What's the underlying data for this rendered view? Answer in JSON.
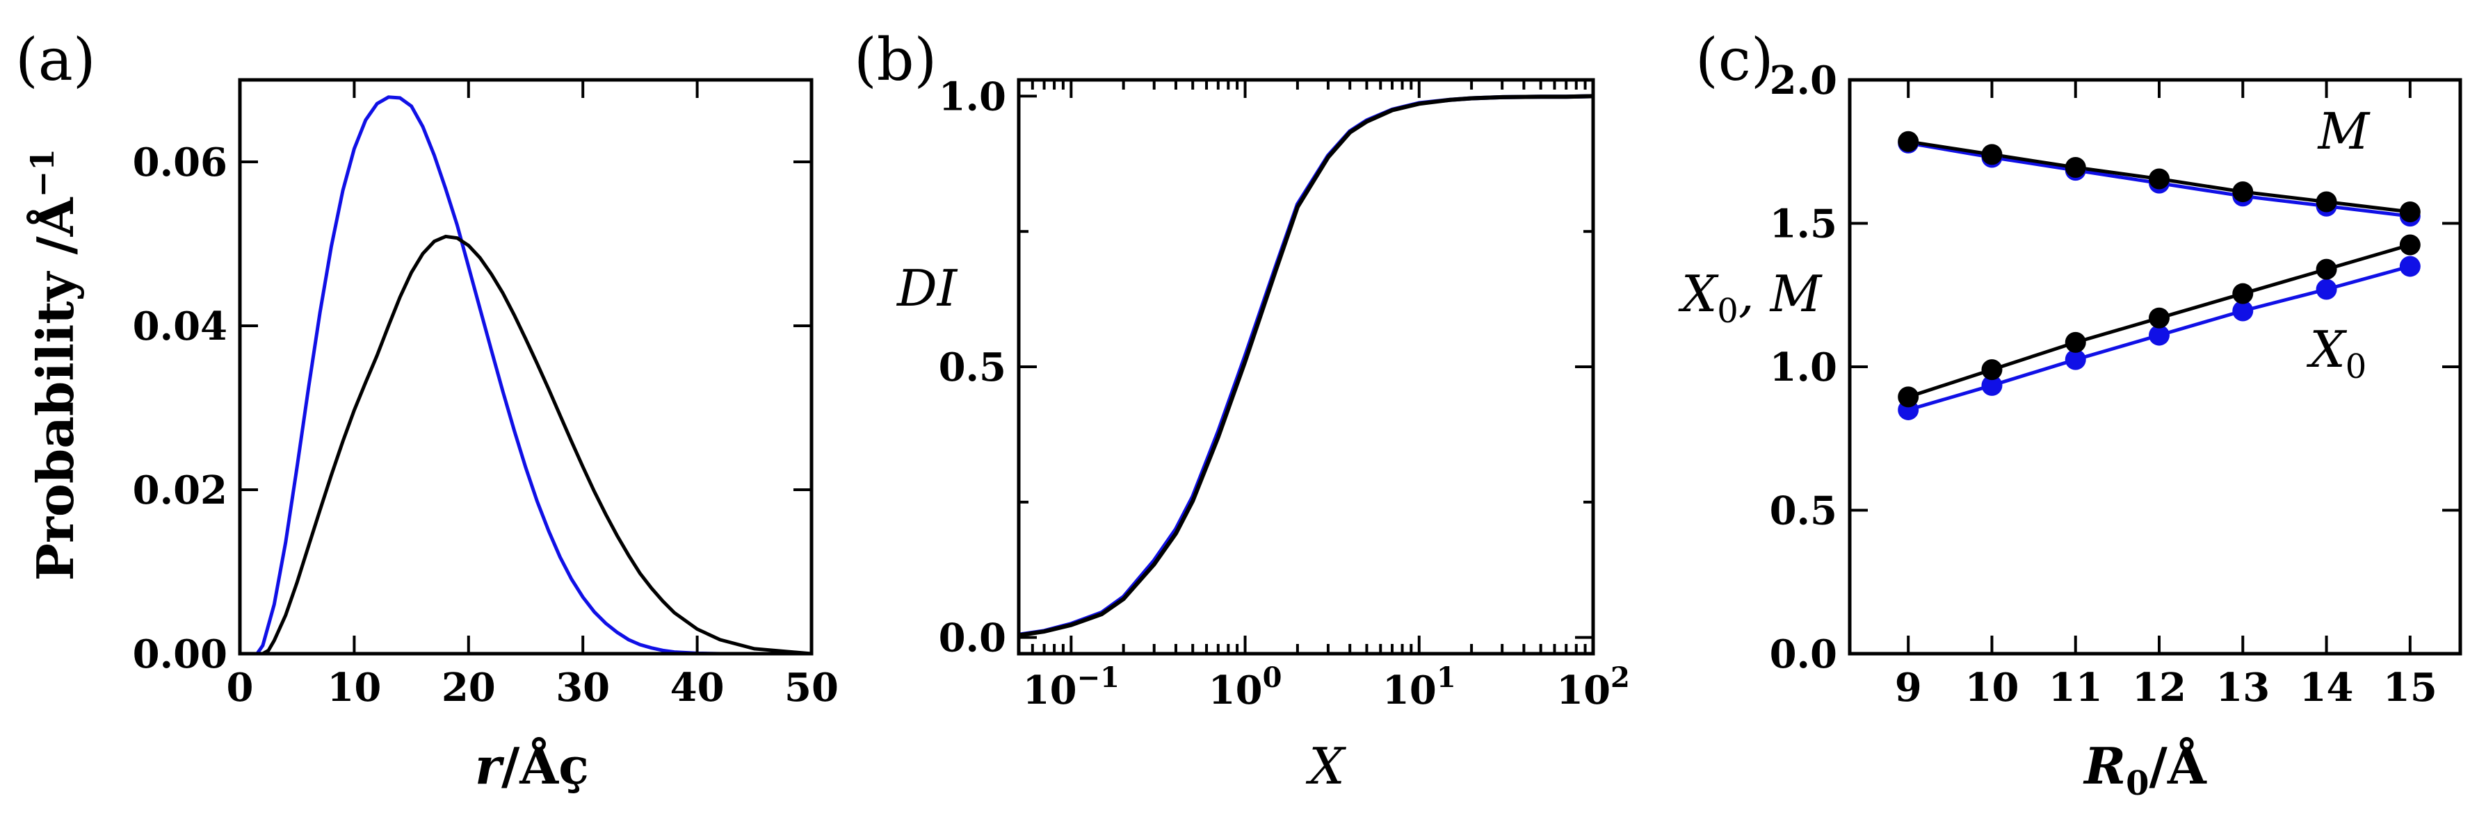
{
  "colors": {
    "black": "#000000",
    "blue": "#1010e6"
  },
  "chart_data": [
    {
      "type": "line",
      "panel_label": "(a)",
      "xlabel_prefix": "r",
      "xlabel_sep": "/",
      "xlabel_unit": "Åç",
      "ylabel": "Probability /Å",
      "ylabel_sup": "−1",
      "xlim": [
        0,
        50
      ],
      "ylim": [
        0,
        0.07
      ],
      "xticks": [
        0,
        10,
        20,
        30,
        40,
        50
      ],
      "xtick_labels": [
        "0",
        "10",
        "20",
        "30",
        "40",
        "50"
      ],
      "yticks": [
        0,
        0.02,
        0.04,
        0.06
      ],
      "ytick_labels": [
        "0.00",
        "0.02",
        "0.04",
        "0.06"
      ],
      "grid": false,
      "series": [
        {
          "color": "blue",
          "x": [
            0,
            1.5,
            2,
            3,
            4,
            5,
            6,
            7,
            8,
            9,
            10,
            11,
            12,
            13,
            14,
            15,
            16,
            17,
            18,
            19,
            20,
            21,
            22,
            23,
            24,
            25,
            26,
            27,
            28,
            29,
            30,
            31,
            32,
            33,
            34,
            35,
            36,
            37,
            38,
            40,
            42,
            45,
            50
          ],
          "y": [
            0,
            0,
            0.001,
            0.006,
            0.0136,
            0.0228,
            0.0324,
            0.0416,
            0.0497,
            0.0565,
            0.0616,
            0.0651,
            0.0671,
            0.0679,
            0.0678,
            0.0668,
            0.0643,
            0.0608,
            0.0567,
            0.0523,
            0.0472,
            0.0421,
            0.037,
            0.032,
            0.0272,
            0.0227,
            0.0186,
            0.015,
            0.0118,
            0.0091,
            0.0069,
            0.0051,
            0.0037,
            0.0026,
            0.0017,
            0.0011,
            0.0007,
            0.0004,
            0.0002,
            5e-05,
            0,
            0,
            0
          ]
        },
        {
          "color": "black",
          "x": [
            0,
            2,
            2.5,
            3,
            4,
            5,
            6,
            7,
            8,
            9,
            10,
            11,
            12,
            13,
            14,
            15,
            16,
            17,
            18,
            19,
            20,
            21,
            22,
            23,
            24,
            25,
            26,
            27,
            28,
            29,
            30,
            31,
            32,
            33,
            34,
            35,
            36,
            37,
            38,
            40,
            42,
            45,
            50
          ],
          "y": [
            0,
            0,
            0.0004,
            0.0016,
            0.0047,
            0.0087,
            0.0131,
            0.0175,
            0.0218,
            0.0259,
            0.0297,
            0.0331,
            0.0364,
            0.04,
            0.0435,
            0.0465,
            0.0488,
            0.0503,
            0.0509,
            0.0507,
            0.0498,
            0.0483,
            0.0463,
            0.044,
            0.0413,
            0.0384,
            0.0354,
            0.0323,
            0.0291,
            0.0259,
            0.0228,
            0.0198,
            0.017,
            0.0144,
            0.012,
            0.0098,
            0.008,
            0.0064,
            0.005,
            0.003,
            0.0017,
            0.0006,
            0
          ]
        }
      ]
    },
    {
      "type": "line",
      "panel_label": "(b)",
      "xlabel": "X",
      "ylabel": "DI",
      "xscale": "log",
      "xlim": [
        0.05,
        100
      ],
      "ylim": [
        -0.03,
        1.03
      ],
      "xticks": [
        0.1,
        1,
        10,
        100
      ],
      "xtick_base": "10",
      "xtick_exps": [
        "−1",
        "0",
        "1",
        "2"
      ],
      "yticks": [
        0,
        0.5,
        1
      ],
      "ytick_labels": [
        "0.0",
        "0.5",
        "1.0"
      ],
      "grid": false,
      "series": [
        {
          "color": "blue",
          "x": [
            0.05,
            0.07,
            0.1,
            0.15,
            0.2,
            0.3,
            0.4,
            0.5,
            0.7,
            1,
            1.5,
            2,
            3,
            4,
            5,
            7,
            10,
            15,
            20,
            30,
            50,
            70,
            100
          ],
          "y": [
            0.005,
            0.012,
            0.025,
            0.046,
            0.075,
            0.142,
            0.2,
            0.26,
            0.38,
            0.52,
            0.685,
            0.8,
            0.89,
            0.935,
            0.955,
            0.975,
            0.987,
            0.993,
            0.996,
            0.998,
            0.999,
            0.999,
            1.0
          ]
        },
        {
          "color": "black",
          "x": [
            0.05,
            0.07,
            0.1,
            0.15,
            0.2,
            0.3,
            0.4,
            0.5,
            0.7,
            1,
            1.5,
            2,
            3,
            4,
            5,
            7,
            10,
            15,
            20,
            30,
            50,
            70,
            100
          ],
          "y": [
            0.004,
            0.011,
            0.023,
            0.043,
            0.071,
            0.135,
            0.192,
            0.252,
            0.37,
            0.51,
            0.678,
            0.795,
            0.887,
            0.933,
            0.953,
            0.974,
            0.986,
            0.993,
            0.996,
            0.998,
            0.999,
            0.999,
            1.0
          ]
        }
      ]
    },
    {
      "type": "scatter",
      "panel_label": "(c)",
      "xlabel": "R",
      "xlabel_sub": "0",
      "xlabel_unit": "/Å",
      "ylabel": "X",
      "ylabel_sub": "0",
      "ylabel_rest": ", M",
      "xlim": [
        8.3,
        15.6
      ],
      "ylim": [
        0,
        2.0
      ],
      "xticks": [
        9,
        10,
        11,
        12,
        13,
        14,
        15
      ],
      "xtick_labels": [
        "9",
        "10",
        "11",
        "12",
        "13",
        "14",
        "15"
      ],
      "yticks": [
        0,
        0.5,
        1.0,
        1.5,
        2.0
      ],
      "ytick_labels": [
        "0.0",
        "0.5",
        "1.0",
        "1.5",
        "2.0"
      ],
      "grid": false,
      "annotations": [
        {
          "text": "M",
          "sub": "",
          "x": 13.9,
          "y": 1.76
        },
        {
          "text": "X",
          "sub": "0",
          "x": 13.8,
          "y": 1.0
        }
      ],
      "x": [
        9,
        10,
        11,
        12,
        13,
        14,
        15
      ],
      "series": [
        {
          "color": "blue",
          "values": [
            1.78,
            1.73,
            1.685,
            1.64,
            1.595,
            1.56,
            1.525
          ]
        },
        {
          "color": "black",
          "values": [
            1.785,
            1.74,
            1.695,
            1.655,
            1.61,
            1.575,
            1.54
          ]
        },
        {
          "color": "blue",
          "values": [
            0.85,
            0.935,
            1.025,
            1.11,
            1.195,
            1.27,
            1.35
          ]
        },
        {
          "color": "black",
          "values": [
            0.895,
            0.99,
            1.085,
            1.17,
            1.255,
            1.34,
            1.425
          ]
        }
      ]
    }
  ]
}
